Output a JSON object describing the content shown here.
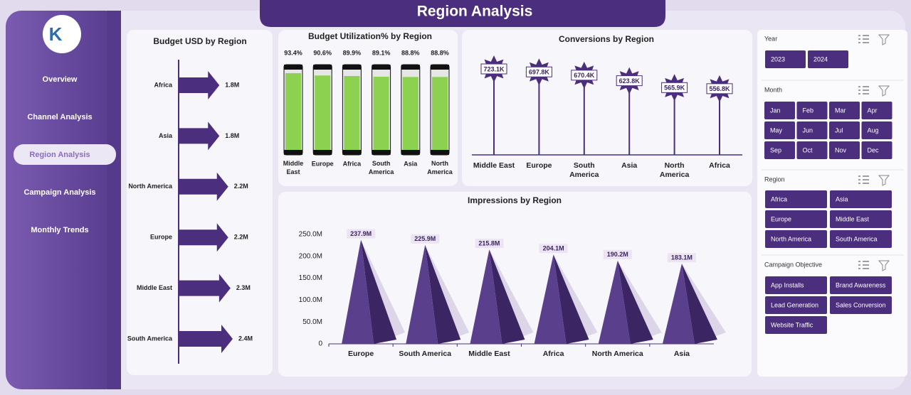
{
  "header": {
    "title": "Region Analysis"
  },
  "navigation": {
    "items": [
      "Overview",
      "Channel Analysis",
      "Region Analysis",
      "Campaign Analysis",
      "Monthly Trends"
    ]
  },
  "chart_data": [
    {
      "type": "arrow-bar",
      "title": "Budget USD by Region",
      "color": "#4b2e7e",
      "categories": [
        "Africa",
        "Asia",
        "North America",
        "Europe",
        "Middle East",
        "South America"
      ],
      "values": [
        1800000,
        1800000,
        2200000,
        2200000,
        2300000,
        2400000
      ],
      "value_labels": [
        "1.8M",
        "1.8M",
        "2.2M",
        "2.2M",
        "2.3M",
        "2.4M"
      ]
    },
    {
      "type": "battery",
      "title": "Budget Utilization% by Region",
      "color": "#8cd14f",
      "categories": [
        "Middle East",
        "Europe",
        "Africa",
        "South America",
        "Asia",
        "North America"
      ],
      "values": [
        93.4,
        90.6,
        89.9,
        89.1,
        88.8,
        88.8
      ],
      "value_labels": [
        "93.4%",
        "90.6%",
        "89.9%",
        "89.1%",
        "88.8%",
        "88.8%"
      ]
    },
    {
      "type": "lollipop",
      "title": "Conversions by Region",
      "color": "#4b2e7e",
      "categories": [
        "Middle East",
        "Europe",
        "South America",
        "Asia",
        "North America",
        "Africa"
      ],
      "values": [
        723100,
        697800,
        670400,
        623800,
        565900,
        556800
      ],
      "value_labels": [
        "723.1K",
        "697.8K",
        "670.4K",
        "623.8K",
        "565.9K",
        "556.8K"
      ]
    },
    {
      "type": "pyramid",
      "title": "Impressions by Region",
      "color": "#5a3f8c",
      "categories": [
        "Europe",
        "South America",
        "Middle East",
        "Africa",
        "North America",
        "Asia"
      ],
      "values": [
        237900000,
        225900000,
        215800000,
        204100000,
        190200000,
        183100000
      ],
      "value_labels": [
        "237.9M",
        "225.9M",
        "215.8M",
        "204.1M",
        "190.2M",
        "183.1M"
      ],
      "ylim": [
        0,
        250000000
      ],
      "yticks": [
        0,
        {
          "value": 50000000,
          "label": "50.0M"
        },
        {
          "value": 100000000,
          "label": "100.0M"
        },
        {
          "value": 150000000,
          "label": "150.0M"
        },
        {
          "value": 200000000,
          "label": "200.0M"
        },
        {
          "value": 250000000,
          "label": "250.0M"
        }
      ]
    }
  ],
  "slicers": [
    {
      "title": "Year",
      "items": [
        "2023",
        "2024"
      ]
    },
    {
      "title": "Month",
      "items": [
        "Jan",
        "Feb",
        "Mar",
        "Apr",
        "May",
        "Jun",
        "Jul",
        "Aug",
        "Sep",
        "Oct",
        "Nov",
        "Dec"
      ]
    },
    {
      "title": "Region",
      "items": [
        "Africa",
        "Asia",
        "Europe",
        "Middle East",
        "North America",
        "South America"
      ]
    },
    {
      "title": "Campaign Objective",
      "items": [
        "App Installs",
        "Brand Awareness",
        "Lead Generation",
        "Sales Conversion",
        "Website Traffic"
      ]
    }
  ]
}
